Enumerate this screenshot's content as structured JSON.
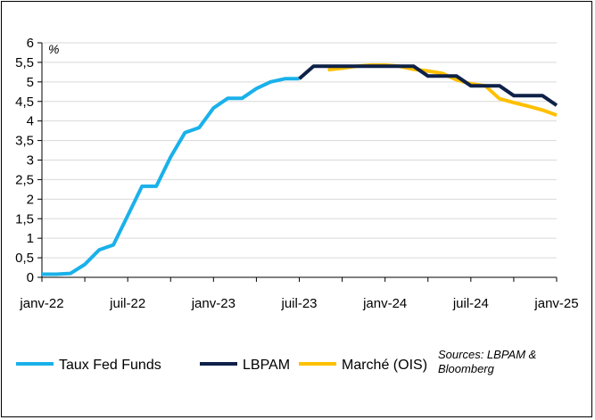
{
  "chart_data": {
    "type": "line",
    "ylabel": "%",
    "ylim": [
      0,
      6
    ],
    "yticks": [
      "0",
      "0,5",
      "1",
      "1,5",
      "2",
      "2,5",
      "3",
      "3,5",
      "4",
      "4,5",
      "5",
      "5,5",
      "6"
    ],
    "yticks_values": [
      0,
      0.5,
      1,
      1.5,
      2,
      2.5,
      3,
      3.5,
      4,
      4.5,
      5,
      5.5,
      6
    ],
    "xlim": [
      0,
      36
    ],
    "xticks": [
      "janv-22",
      "juil-22",
      "janv-23",
      "juil-23",
      "janv-24",
      "juil-24",
      "janv-25"
    ],
    "xticks_months": [
      0,
      6,
      12,
      18,
      24,
      30,
      36
    ],
    "gridlines": "horizontal",
    "legend_position": "bottom",
    "source_note": "Sources: LBPAM & Bloomberg",
    "series": [
      {
        "name": "Taux Fed Funds",
        "color": "#1AB1EA",
        "points": [
          [
            0,
            0.08
          ],
          [
            1,
            0.08
          ],
          [
            2,
            0.1
          ],
          [
            3,
            0.33
          ],
          [
            4,
            0.7
          ],
          [
            5,
            0.83
          ],
          [
            6,
            1.58
          ],
          [
            7,
            2.33
          ],
          [
            8,
            2.33
          ],
          [
            9,
            3.08
          ],
          [
            10,
            3.7
          ],
          [
            11,
            3.83
          ],
          [
            12,
            4.33
          ],
          [
            13,
            4.58
          ],
          [
            14,
            4.58
          ],
          [
            15,
            4.83
          ],
          [
            16,
            5.0
          ],
          [
            17,
            5.08
          ],
          [
            18,
            5.08
          ]
        ]
      },
      {
        "name": "LBPAM",
        "color": "#0E2148",
        "points": [
          [
            18,
            5.08
          ],
          [
            19,
            5.4
          ],
          [
            20,
            5.4
          ],
          [
            21,
            5.4
          ],
          [
            22,
            5.4
          ],
          [
            23,
            5.4
          ],
          [
            24,
            5.4
          ],
          [
            25,
            5.4
          ],
          [
            26,
            5.4
          ],
          [
            27,
            5.15
          ],
          [
            28,
            5.15
          ],
          [
            29,
            5.15
          ],
          [
            30,
            4.9
          ],
          [
            31,
            4.9
          ],
          [
            32,
            4.9
          ],
          [
            33,
            4.65
          ],
          [
            34,
            4.65
          ],
          [
            35,
            4.65
          ],
          [
            36,
            4.4
          ]
        ]
      },
      {
        "name": "Marché (OIS)",
        "color": "#FFC000",
        "points": [
          [
            20,
            5.31
          ],
          [
            21,
            5.35
          ],
          [
            22,
            5.4
          ],
          [
            23,
            5.43
          ],
          [
            24,
            5.43
          ],
          [
            25,
            5.4
          ],
          [
            26,
            5.32
          ],
          [
            27,
            5.28
          ],
          [
            28,
            5.22
          ],
          [
            29,
            5.05
          ],
          [
            30,
            4.95
          ],
          [
            31,
            4.9
          ],
          [
            32,
            4.57
          ],
          [
            33,
            4.47
          ],
          [
            34,
            4.38
          ],
          [
            35,
            4.28
          ],
          [
            36,
            4.15
          ]
        ]
      }
    ]
  }
}
